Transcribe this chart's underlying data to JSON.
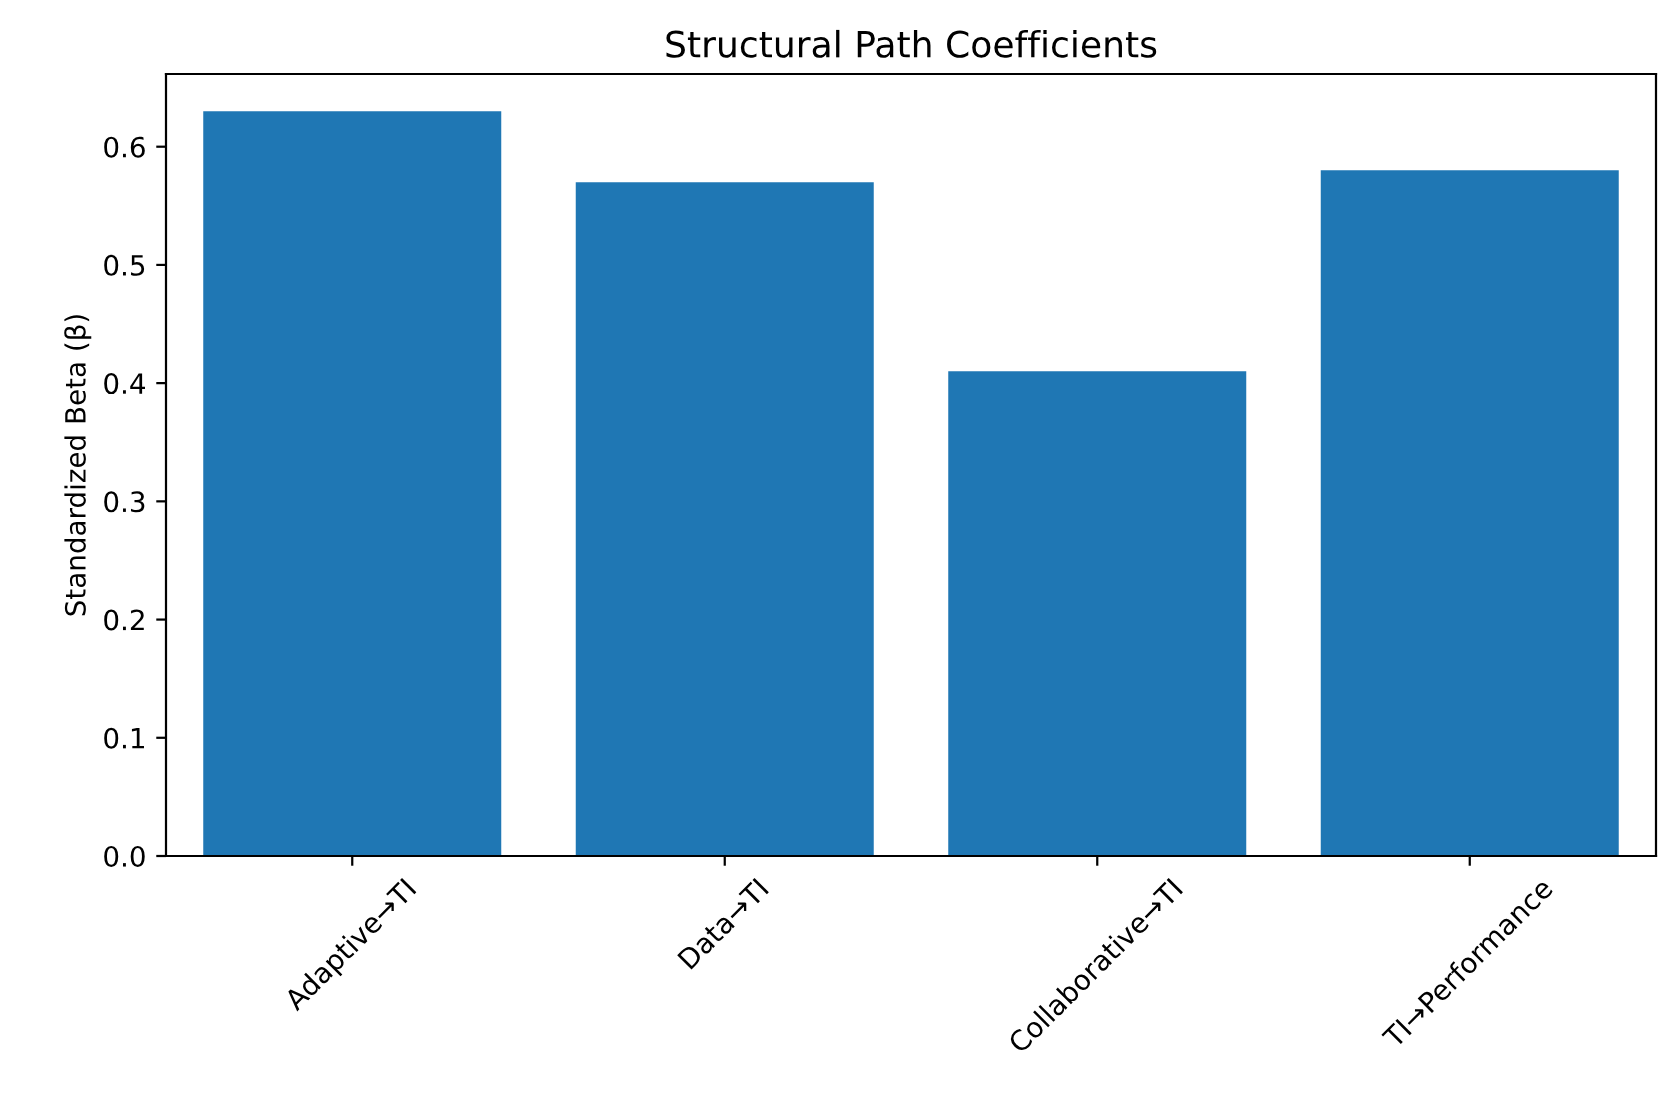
{
  "chart_data": {
    "type": "bar",
    "title": "Structural Path Coefficients",
    "ylabel": "Standardized Beta (β)",
    "categories": [
      "Adaptive→TI",
      "Data→TI",
      "Collaborative→TI",
      "TI→Performance"
    ],
    "values": [
      0.63,
      0.57,
      0.41,
      0.58
    ],
    "color": "#1f77b4",
    "ylim": [
      0,
      0.6615
    ],
    "yticks": [
      {
        "value": 0,
        "label": "0.0"
      },
      {
        "value": 0.1,
        "label": "0.1"
      },
      {
        "value": 0.2,
        "label": "0.2"
      },
      {
        "value": 0.3,
        "label": "0.3"
      },
      {
        "value": 0.4,
        "label": "0.4"
      },
      {
        "value": 0.5,
        "label": "0.5"
      },
      {
        "value": 0.6,
        "label": "0.6"
      }
    ],
    "grid": false
  }
}
